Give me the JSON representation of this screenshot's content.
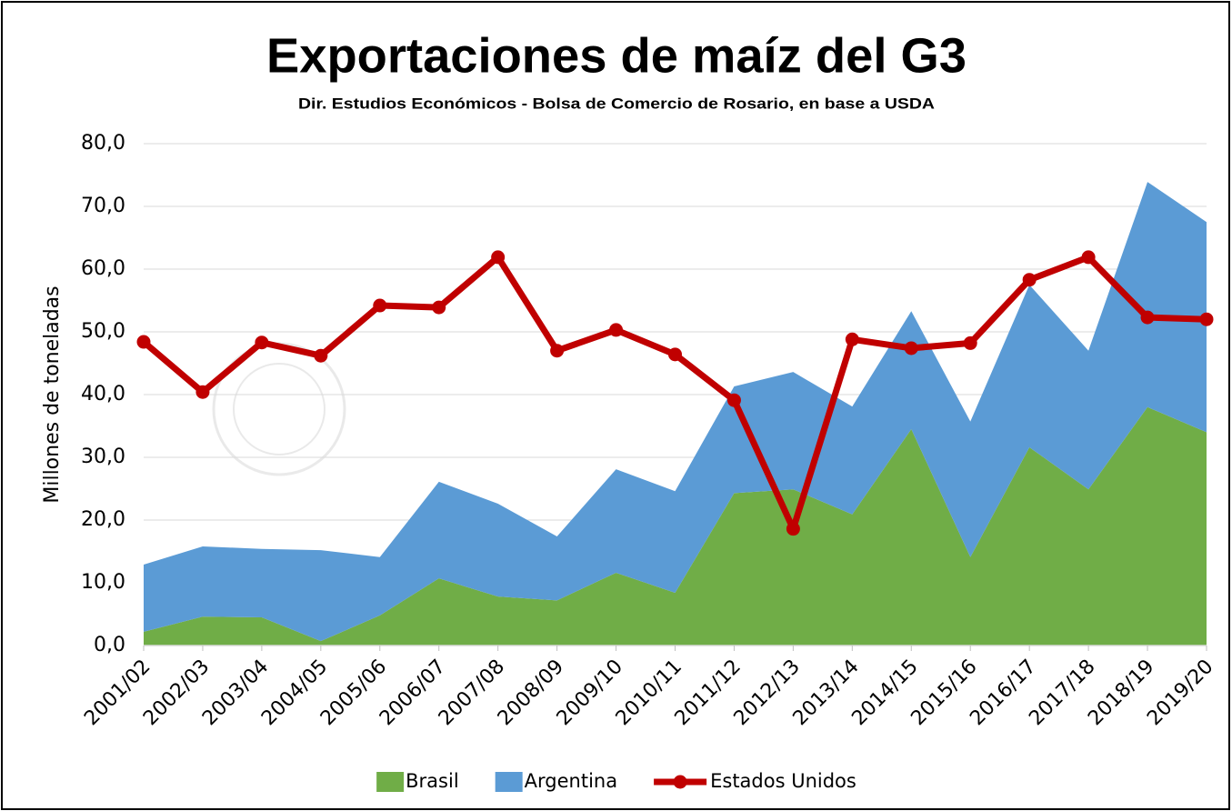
{
  "chart_data": {
    "type": "area",
    "title": "Exportaciones de maíz del G3",
    "subtitle": "Dir. Estudios Económicos - Bolsa de Comercio de Rosario, en base a USDA",
    "y_label": "Millones de toneladas",
    "categories": [
      "2001/02",
      "2002/03",
      "2003/04",
      "2004/05",
      "2005/06",
      "2006/07",
      "2007/08",
      "2008/09",
      "2009/10",
      "2010/11",
      "2011/12",
      "2012/13",
      "2013/14",
      "2014/15",
      "2015/16",
      "2016/17",
      "2017/18",
      "2018/19",
      "2019/20"
    ],
    "series": [
      {
        "name": "Brasil",
        "type": "area",
        "color": "#70ad47",
        "values": [
          2.2,
          4.6,
          4.5,
          0.7,
          4.8,
          10.7,
          7.8,
          7.2,
          11.6,
          8.4,
          24.3,
          24.9,
          20.9,
          34.5,
          14.1,
          31.6,
          24.9,
          38.0,
          34.0
        ]
      },
      {
        "name": "Argentina",
        "type": "area",
        "color": "#5b9bd5",
        "values": [
          10.7,
          11.2,
          10.9,
          14.5,
          9.3,
          15.4,
          14.8,
          10.2,
          16.5,
          16.2,
          17.0,
          18.7,
          17.2,
          18.8,
          21.6,
          25.9,
          22.1,
          35.9,
          33.5
        ]
      },
      {
        "name": "Estados Unidos",
        "type": "line",
        "color": "#c00000",
        "values": [
          48.4,
          40.4,
          48.3,
          46.2,
          54.2,
          53.9,
          61.9,
          47.0,
          50.3,
          46.4,
          39.1,
          18.6,
          48.8,
          47.4,
          48.2,
          58.3,
          61.9,
          52.3,
          52.0
        ]
      }
    ],
    "ylim": [
      0,
      80
    ],
    "yticks": [
      {
        "value": 0,
        "label": "0,0"
      },
      {
        "value": 10,
        "label": "10,0"
      },
      {
        "value": 20,
        "label": "20,0"
      },
      {
        "value": 30,
        "label": "30,0"
      },
      {
        "value": 40,
        "label": "40,0"
      },
      {
        "value": 50,
        "label": "50,0"
      },
      {
        "value": 60,
        "label": "60,0"
      },
      {
        "value": 70,
        "label": "70,0"
      },
      {
        "value": 80,
        "label": "80,0"
      }
    ],
    "grid": true,
    "legend": "bottom"
  }
}
